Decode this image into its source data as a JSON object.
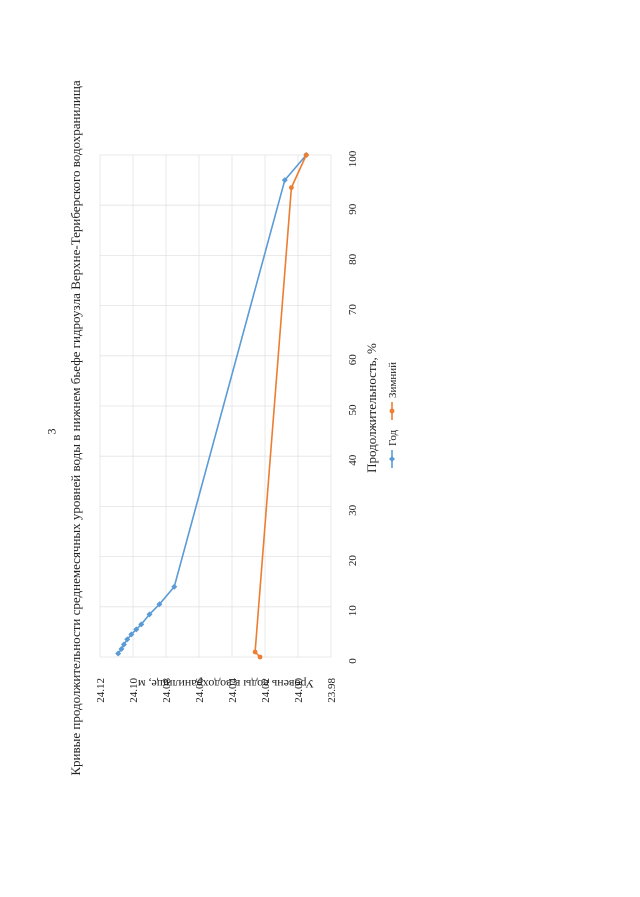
{
  "page_number": "3",
  "chart_data": {
    "type": "line",
    "title": "Кривые продолжительности среднемесячных уровней воды в нижнем бьефе гидроузла Верхне-Териберского водохранилища",
    "xlabel": "Продолжительность, %",
    "ylabel": "Уровень воды в водохранилище, м",
    "xlim": [
      0,
      100
    ],
    "ylim": [
      23.98,
      24.12
    ],
    "x_ticks": [
      "0",
      "10",
      "20",
      "30",
      "40",
      "50",
      "60",
      "70",
      "80",
      "90",
      "100"
    ],
    "y_ticks": [
      "23.98",
      "24.00",
      "24.02",
      "24.04",
      "24.06",
      "24.08",
      "24.10",
      "24.12"
    ],
    "grid": true,
    "legend_placement": "bottom",
    "series": [
      {
        "name": "Год",
        "color": "#5b9bd5",
        "marker": "diamond",
        "x": [
          0.7,
          1.6,
          2.5,
          3.5,
          4.5,
          5.5,
          6.5,
          8.5,
          10.5,
          14.0,
          95.0,
          100.0
        ],
        "y": [
          24.109,
          24.107,
          24.1055,
          24.1035,
          24.101,
          24.098,
          24.095,
          24.09,
          24.084,
          24.075,
          24.008,
          23.995
        ]
      },
      {
        "name": "Зимний",
        "color": "#ed7d31",
        "marker": "circle",
        "x": [
          0.0,
          1.0,
          93.5,
          100.0
        ],
        "y": [
          24.023,
          24.026,
          24.004,
          23.995
        ]
      }
    ]
  }
}
